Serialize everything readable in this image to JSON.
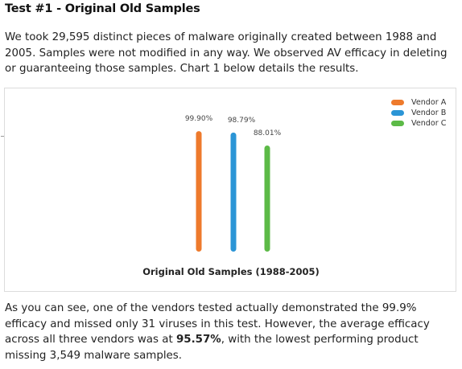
{
  "heading": "Test #1 - Original Old Samples",
  "intro": "We took 29,595 distinct pieces of malware originally created between 1988 and 2005. Samples were not modified in any way. We observed AV efficacy in deleting or guaranteeing those samples. Chart 1 below details the results.",
  "chart_data": {
    "type": "bar",
    "title": "Original Old Samples (1988-2005)",
    "categories": [
      "Vendor A",
      "Vendor B",
      "Vendor C"
    ],
    "values": [
      99.9,
      98.79,
      88.01
    ],
    "labels": [
      "99.90%",
      "98.79%",
      "88.01%"
    ],
    "colors": [
      "#ee7a2c",
      "#2b95d6",
      "#5cba47"
    ],
    "ylim": [
      0,
      100
    ],
    "legend": "top-right",
    "grid": false
  },
  "conclusion": {
    "part1": "As you can see, one of the vendors tested actually demonstrated the 99.9% efficacy and missed only 31 viruses in this test. However, the average efficacy across all three vendors was at ",
    "highlight": "95.57%",
    "part2": ", with the lowest performing product missing 3,549 malware samples."
  }
}
